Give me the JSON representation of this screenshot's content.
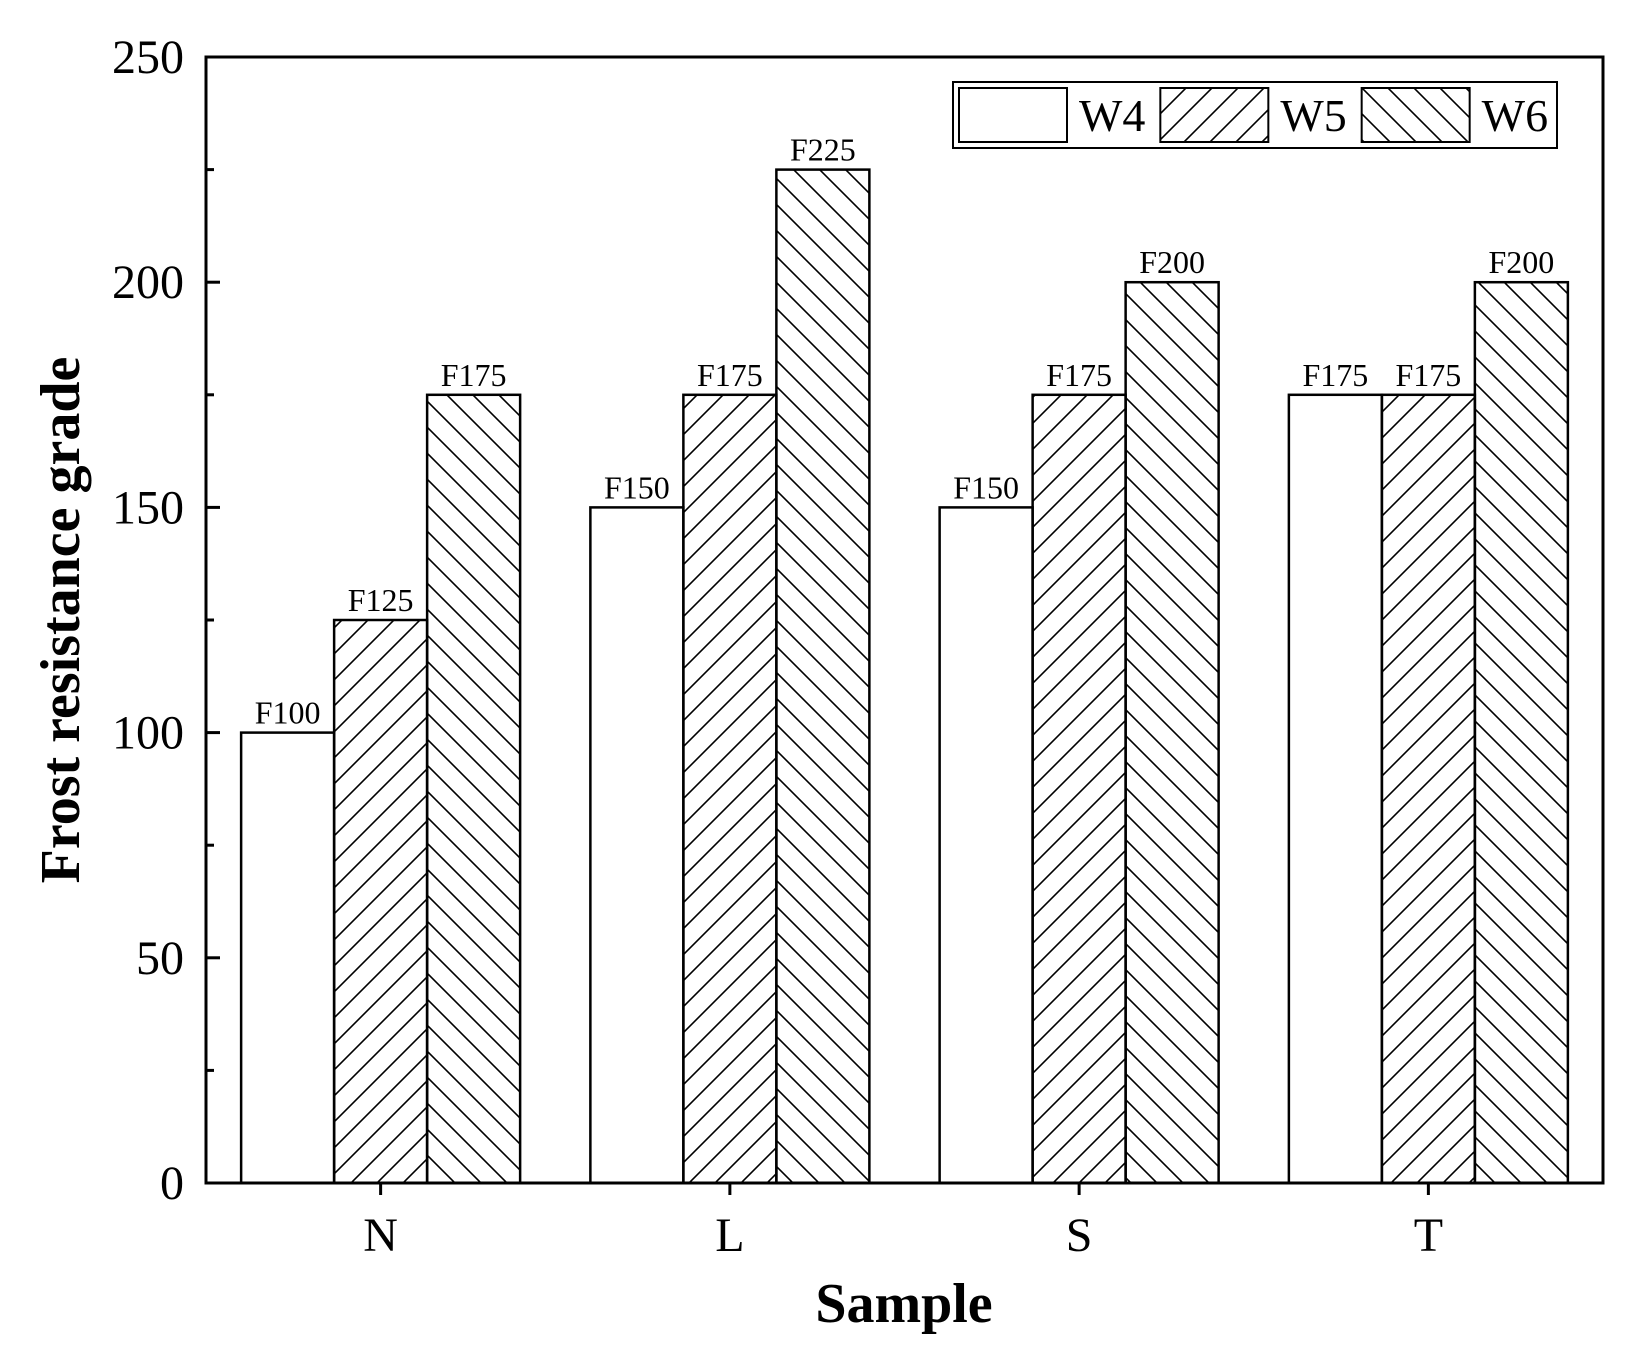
{
  "chart_data": {
    "type": "bar",
    "title": "",
    "xlabel": "Sample",
    "ylabel": "Frost resistance grade",
    "categories": [
      "N",
      "L",
      "S",
      "T"
    ],
    "ylim": [
      0,
      250
    ],
    "yticks": [
      0,
      50,
      100,
      150,
      200,
      250
    ],
    "grid": false,
    "legend_position": "top-right",
    "series": [
      {
        "name": "W4",
        "pattern": "none",
        "values": [
          100,
          150,
          150,
          175
        ],
        "labels": [
          "F100",
          "F150",
          "F150",
          "F175"
        ]
      },
      {
        "name": "W5",
        "pattern": "forward-diagonal",
        "values": [
          125,
          175,
          175,
          175
        ],
        "labels": [
          "F125",
          "F175",
          "F175",
          "F175"
        ]
      },
      {
        "name": "W6",
        "pattern": "backward-diagonal",
        "values": [
          175,
          225,
          200,
          200
        ],
        "labels": [
          "F175",
          "F225",
          "F200",
          "F200"
        ]
      }
    ],
    "colors": {
      "stroke": "#000000",
      "fill": "#ffffff"
    }
  }
}
